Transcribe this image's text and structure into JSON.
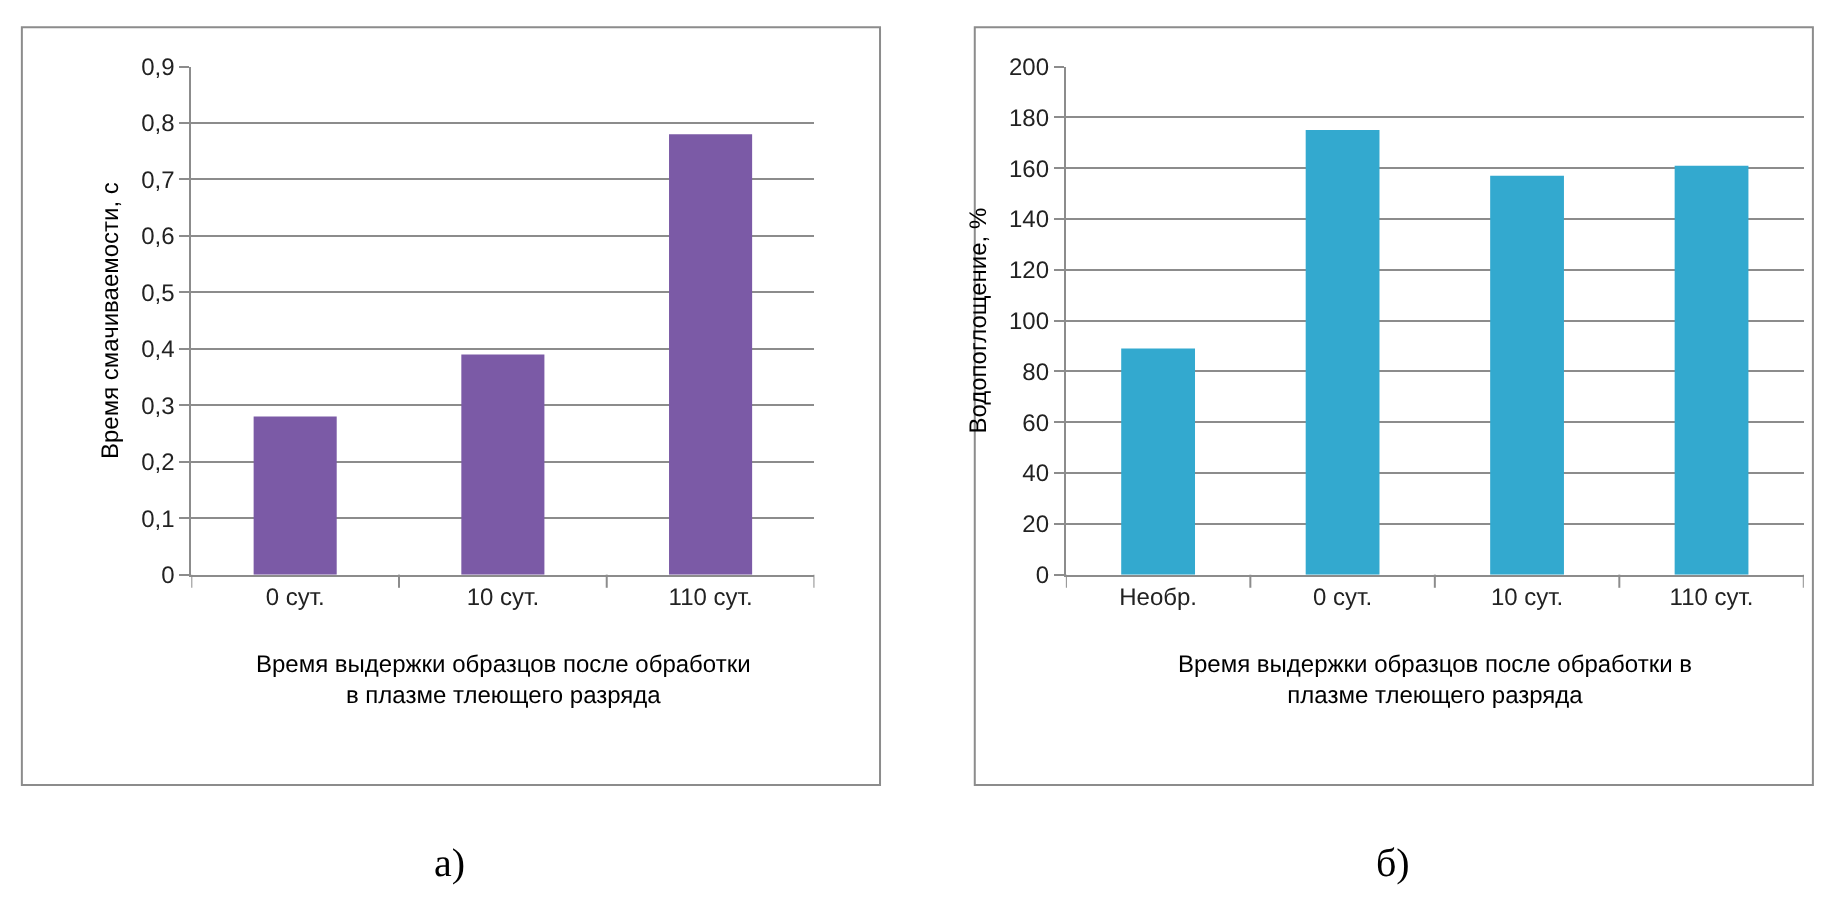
{
  "chart_data": [
    {
      "type": "bar",
      "categories": [
        "0 сут.",
        "10 сут.",
        "110 сут."
      ],
      "values": [
        0.28,
        0.39,
        0.78
      ],
      "color": "#7b5aa6",
      "xlabel": "Время выдержки образцов после обработки в плазме тлеющего разряда",
      "ylabel": "Время смачиваемости, с",
      "ylim": [
        0,
        0.9
      ],
      "yticks": [
        {
          "value": 0,
          "label": "0"
        },
        {
          "value": 0.1,
          "label": "0,1"
        },
        {
          "value": 0.2,
          "label": "0,2"
        },
        {
          "value": 0.3,
          "label": "0,3"
        },
        {
          "value": 0.4,
          "label": "0,4"
        },
        {
          "value": 0.5,
          "label": "0,5"
        },
        {
          "value": 0.6,
          "label": "0,6"
        },
        {
          "value": 0.7,
          "label": "0,7"
        },
        {
          "value": 0.8,
          "label": "0,8"
        },
        {
          "value": 0.9,
          "label": "0,9"
        }
      ],
      "grid": "y",
      "annotations": [
        "а)"
      ]
    },
    {
      "type": "bar",
      "categories": [
        "Необр.",
        "0 сут.",
        "10 сут.",
        "110 сут."
      ],
      "values": [
        89,
        175,
        157,
        161
      ],
      "color": "#33a9cf",
      "xlabel": "Время выдержки образцов после обработки в плазме тлеющего разряда",
      "ylabel": "Водопоглощение, %",
      "ylim": [
        0,
        200
      ],
      "yticks": [
        0,
        20,
        40,
        60,
        80,
        100,
        120,
        140,
        160,
        180,
        200
      ],
      "grid": "y",
      "annotations": [
        "б)"
      ]
    }
  ]
}
